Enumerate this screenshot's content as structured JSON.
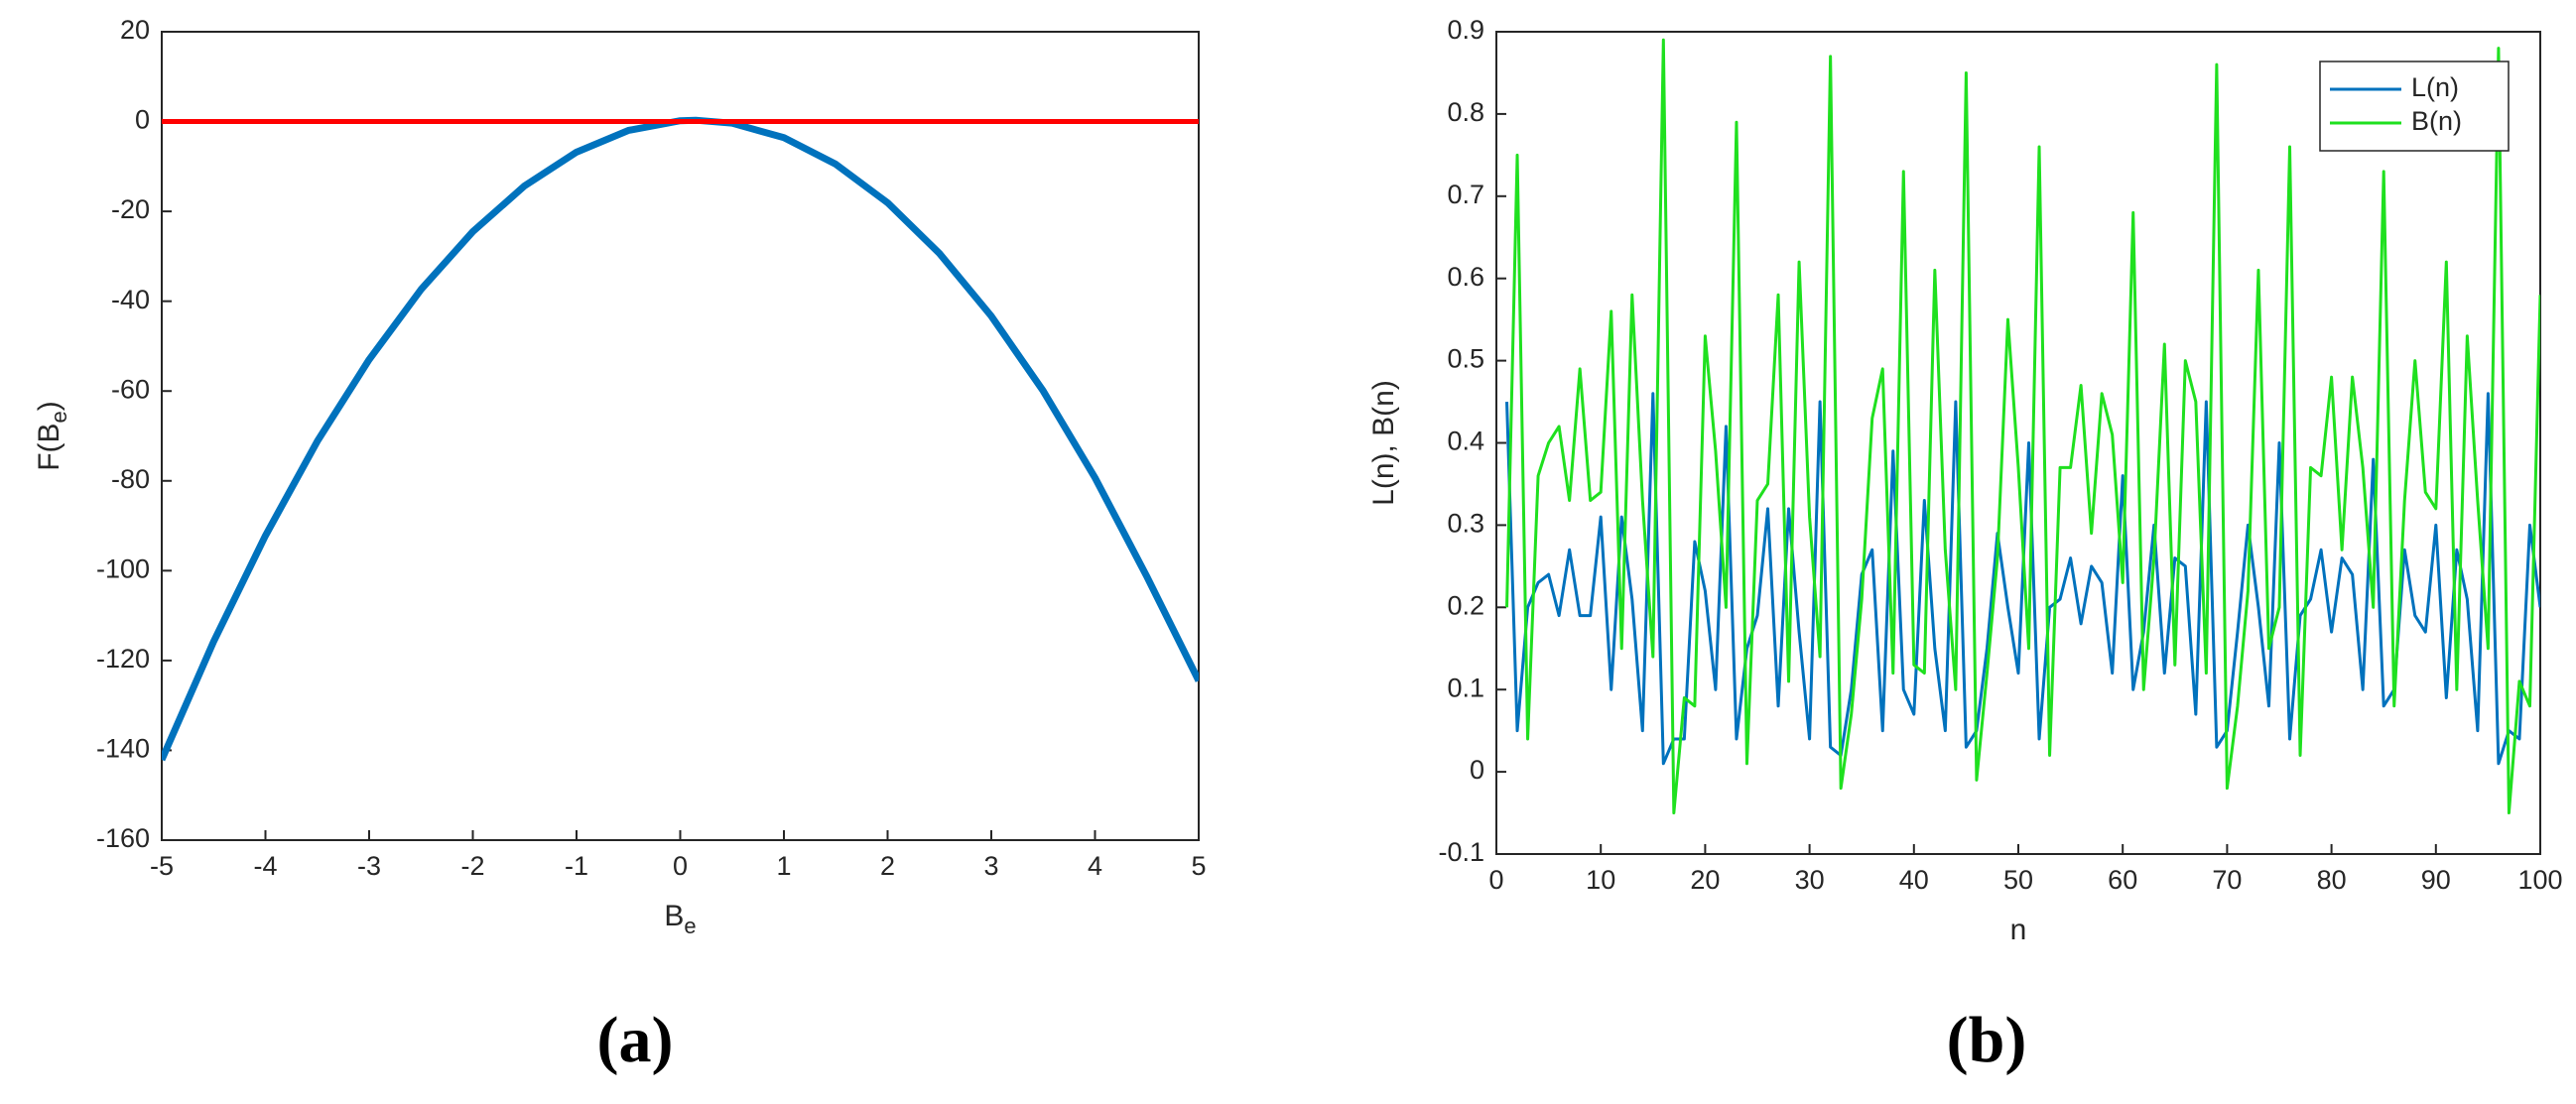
{
  "chart_data": [
    {
      "type": "line",
      "caption": "(a)",
      "xlabel": {
        "text": "B",
        "sub": "e"
      },
      "ylabel": {
        "text": "F(B",
        "sub": "e",
        "after": ")"
      },
      "xlim": [
        -5,
        5
      ],
      "xticks": [
        -5,
        -4,
        -3,
        -2,
        -1,
        0,
        1,
        2,
        3,
        4,
        5
      ],
      "ylim": [
        -160,
        20
      ],
      "yticks": [
        -160,
        -140,
        -120,
        -100,
        -80,
        -60,
        -40,
        -20,
        0,
        20
      ],
      "series": [
        {
          "color": "#0072bd",
          "x": [
            -5,
            -4.5,
            -4,
            -3.5,
            -3,
            -2.5,
            -2,
            -1.5,
            -1,
            -0.5,
            0,
            0.15,
            0.5,
            1,
            1.5,
            2,
            2.5,
            3,
            3.5,
            4,
            4.5,
            5
          ],
          "values": [
            -142.1,
            -115.8,
            -92.2,
            -71.2,
            -53.0,
            -37.4,
            -24.5,
            -14.3,
            -6.8,
            -1.97,
            0.18,
            0.3,
            -0.36,
            -3.58,
            -9.49,
            -18.08,
            -29.36,
            -43.32,
            -59.96,
            -79.3,
            -101.3,
            -124.5
          ]
        },
        {
          "color": "#ff0000",
          "x": [
            -5,
            5
          ],
          "values": [
            0,
            0
          ]
        }
      ]
    },
    {
      "type": "line",
      "caption": "(b)",
      "xlabel": "n",
      "ylabel": "L(n), B(n)",
      "xlim": [
        0,
        100
      ],
      "xticks": [
        0,
        10,
        20,
        30,
        40,
        50,
        60,
        70,
        80,
        90,
        100
      ],
      "ylim": [
        -0.1,
        0.9
      ],
      "yticks": [
        -0.1,
        0,
        0.1,
        0.2,
        0.3,
        0.4,
        0.5,
        0.6,
        0.7,
        0.8,
        0.9
      ],
      "legend": "northeast",
      "x": [
        1,
        2,
        3,
        4,
        5,
        6,
        7,
        8,
        9,
        10,
        11,
        12,
        13,
        14,
        15,
        16,
        17,
        18,
        19,
        20,
        21,
        22,
        23,
        24,
        25,
        26,
        27,
        28,
        29,
        30,
        31,
        32,
        33,
        34,
        35,
        36,
        37,
        38,
        39,
        40,
        41,
        42,
        43,
        44,
        45,
        46,
        47,
        48,
        49,
        50,
        51,
        52,
        53,
        54,
        55,
        56,
        57,
        58,
        59,
        60,
        61,
        62,
        63,
        64,
        65,
        66,
        67,
        68,
        69,
        70,
        71,
        72,
        73,
        74,
        75,
        76,
        77,
        78,
        79,
        80,
        81,
        82,
        83,
        84,
        85,
        86,
        87,
        88,
        89,
        90,
        91,
        92,
        93,
        94,
        95,
        96,
        97,
        98,
        99,
        100
      ],
      "series": [
        {
          "name": "L(n)",
          "color": "#0072bd",
          "values": [
            0.45,
            0.05,
            0.2,
            0.23,
            0.24,
            0.19,
            0.27,
            0.19,
            0.19,
            0.31,
            0.1,
            0.31,
            0.21,
            0.05,
            0.46,
            0.01,
            0.04,
            0.04,
            0.28,
            0.22,
            0.1,
            0.42,
            0.04,
            0.15,
            0.19,
            0.32,
            0.08,
            0.32,
            0.17,
            0.04,
            0.45,
            0.03,
            0.02,
            0.1,
            0.24,
            0.27,
            0.05,
            0.39,
            0.1,
            0.07,
            0.33,
            0.15,
            0.05,
            0.45,
            0.03,
            0.05,
            0.15,
            0.29,
            0.2,
            0.12,
            0.4,
            0.04,
            0.2,
            0.21,
            0.26,
            0.18,
            0.25,
            0.23,
            0.12,
            0.36,
            0.1,
            0.17,
            0.3,
            0.12,
            0.26,
            0.25,
            0.07,
            0.45,
            0.03,
            0.05,
            0.17,
            0.3,
            0.2,
            0.08,
            0.4,
            0.04,
            0.19,
            0.21,
            0.27,
            0.17,
            0.26,
            0.24,
            0.1,
            0.38,
            0.08,
            0.1,
            0.27,
            0.19,
            0.17,
            0.3,
            0.09,
            0.27,
            0.21,
            0.05,
            0.46,
            0.01,
            0.05,
            0.04,
            0.3,
            0.2
          ]
        },
        {
          "name": "B(n)",
          "color": "#1fe01f",
          "values": [
            0.2,
            0.75,
            0.04,
            0.36,
            0.4,
            0.42,
            0.33,
            0.49,
            0.33,
            0.34,
            0.56,
            0.15,
            0.58,
            0.33,
            0.14,
            0.89,
            -0.05,
            0.09,
            0.08,
            0.53,
            0.39,
            0.2,
            0.79,
            0.01,
            0.33,
            0.35,
            0.58,
            0.11,
            0.62,
            0.31,
            0.14,
            0.87,
            -0.02,
            0.07,
            0.21,
            0.43,
            0.49,
            0.12,
            0.73,
            0.13,
            0.12,
            0.61,
            0.27,
            0.1,
            0.85,
            -0.01,
            0.12,
            0.26,
            0.55,
            0.37,
            0.15,
            0.76,
            0.02,
            0.37,
            0.37,
            0.47,
            0.29,
            0.46,
            0.41,
            0.23,
            0.68,
            0.1,
            0.26,
            0.52,
            0.13,
            0.5,
            0.45,
            0.12,
            0.86,
            -0.02,
            0.08,
            0.22,
            0.61,
            0.15,
            0.2,
            0.76,
            0.02,
            0.37,
            0.36,
            0.48,
            0.27,
            0.48,
            0.37,
            0.2,
            0.73,
            0.08,
            0.33,
            0.5,
            0.34,
            0.32,
            0.62,
            0.1,
            0.53,
            0.33,
            0.15,
            0.88,
            -0.05,
            0.11,
            0.08,
            0.58
          ]
        }
      ]
    }
  ]
}
